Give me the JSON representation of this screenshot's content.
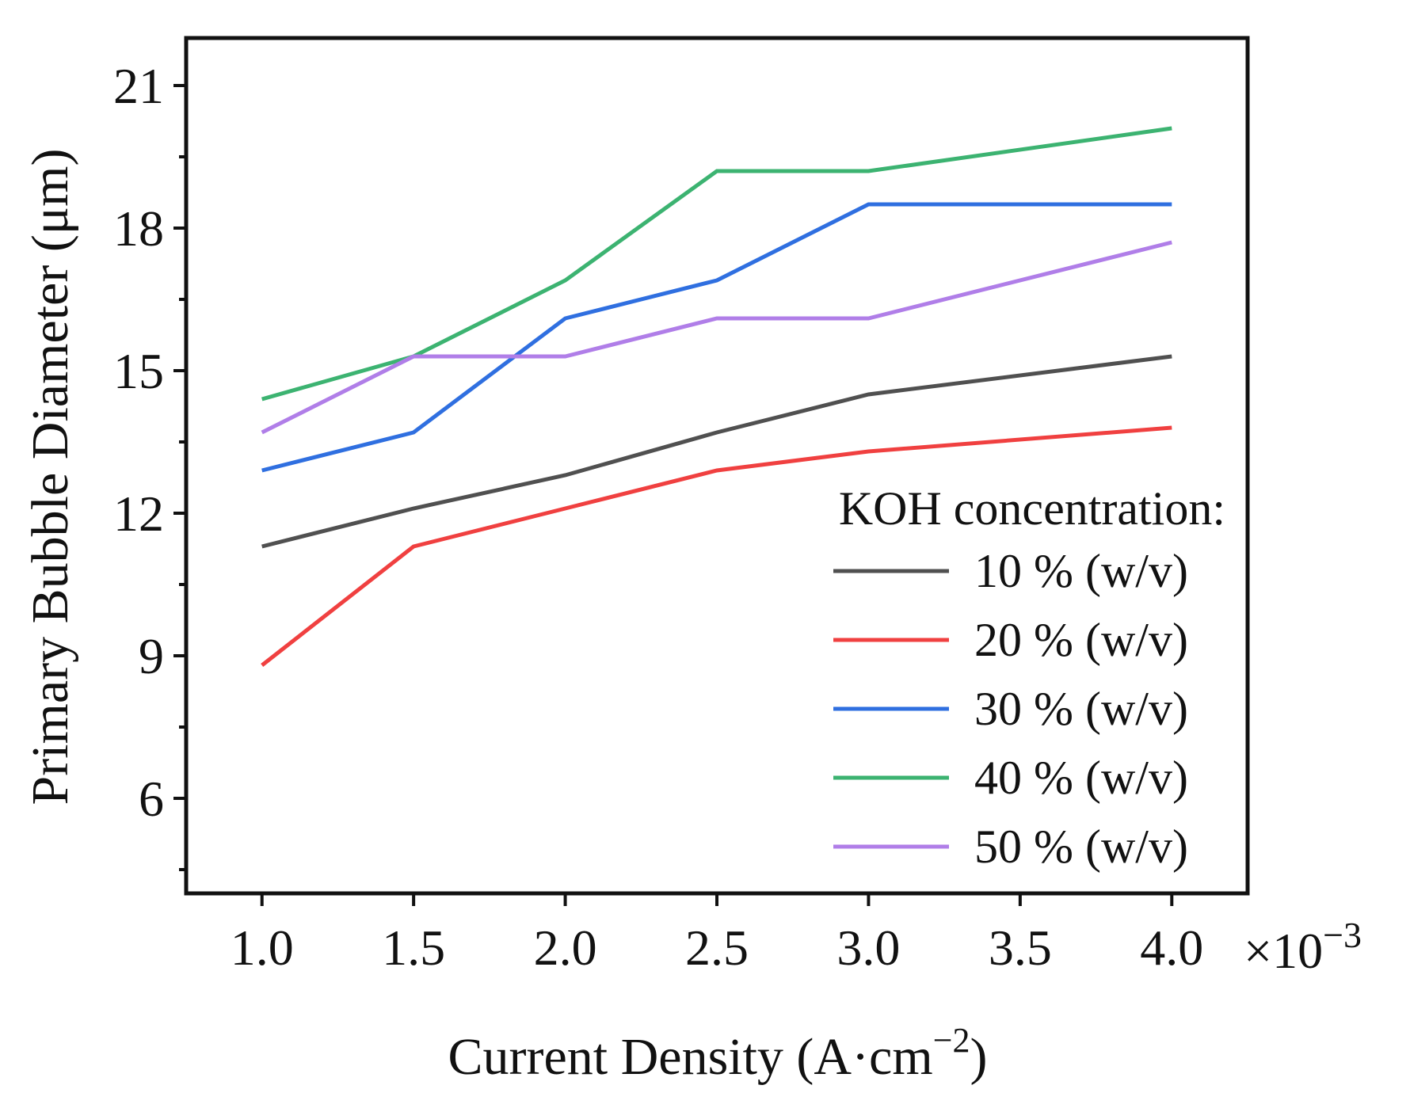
{
  "chart_data": {
    "type": "line",
    "title": "",
    "xlabel": "Current Density (A·cm",
    "xlabel_sup": "−2",
    "xlabel_end": ")",
    "x_multiplier": "×10",
    "x_multiplier_sup": "−3",
    "ylabel": "Primary Bubble Diameter (μm)",
    "x": [
      1.0,
      1.5,
      2.0,
      2.5,
      3.0,
      4.0
    ],
    "xlim": [
      0.75,
      4.25
    ],
    "ylim": [
      4.0,
      22.0
    ],
    "x_ticks": [
      1.0,
      1.5,
      2.0,
      2.5,
      3.0,
      3.5,
      4.0
    ],
    "x_tick_labels": [
      "1.0",
      "1.5",
      "2.0",
      "2.5",
      "3.0",
      "3.5",
      "4.0"
    ],
    "y_ticks": [
      6,
      9,
      12,
      15,
      18,
      21
    ],
    "y_tick_labels": [
      "6",
      "9",
      "12",
      "15",
      "18",
      "21"
    ],
    "y_minor_ticks": [
      4.5,
      7.5,
      10.5,
      13.5,
      16.5,
      19.5
    ],
    "grid": false,
    "legend": {
      "title": "KOH concentration:",
      "position": "bottom-right"
    },
    "series": [
      {
        "name": "10 % (w/v)",
        "color": "#505050",
        "values": [
          11.3,
          12.1,
          12.8,
          13.7,
          14.5,
          15.3
        ]
      },
      {
        "name": "20 % (w/v)",
        "color": "#f04040",
        "values": [
          8.8,
          11.3,
          12.1,
          12.9,
          13.3,
          13.8
        ]
      },
      {
        "name": "30 % (w/v)",
        "color": "#2f6fe0",
        "values": [
          12.9,
          13.7,
          16.1,
          16.9,
          18.5,
          18.5
        ]
      },
      {
        "name": "40 % (w/v)",
        "color": "#3cb371",
        "values": [
          14.4,
          15.3,
          16.9,
          19.2,
          19.2,
          20.1
        ]
      },
      {
        "name": "50 % (w/v)",
        "color": "#b07ee8",
        "values": [
          13.7,
          15.3,
          15.3,
          16.1,
          16.1,
          17.7
        ]
      }
    ]
  }
}
